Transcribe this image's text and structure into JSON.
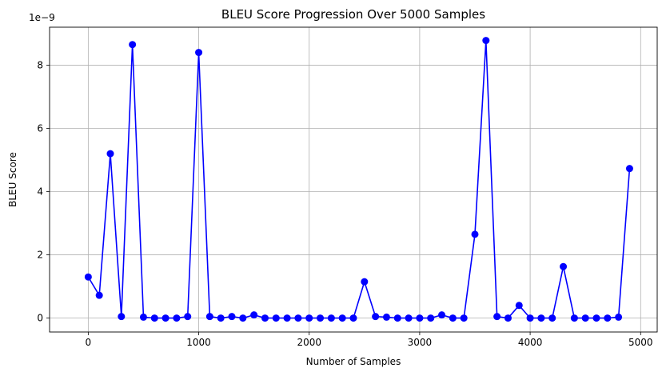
{
  "chart_data": {
    "type": "line",
    "title": "BLEU Score Progression Over 5000 Samples",
    "xlabel": "Number of Samples",
    "ylabel": "BLEU Score",
    "y_offset_label": "1e−9",
    "xlim": [
      -350,
      5150
    ],
    "ylim": [
      -0.44,
      9.2
    ],
    "x_ticks": [
      0,
      1000,
      2000,
      3000,
      4000,
      5000
    ],
    "y_ticks": [
      0,
      2,
      4,
      6,
      8
    ],
    "grid": true,
    "color": "#0000ff",
    "marker": "circle",
    "series": [
      {
        "x": [
          0,
          100,
          200,
          300,
          400,
          500,
          600,
          700,
          800,
          900,
          1000,
          1100,
          1200,
          1300,
          1400,
          1500,
          1600,
          1700,
          1800,
          1900,
          2000,
          2100,
          2200,
          2300,
          2400,
          2500,
          2600,
          2700,
          2800,
          2900,
          3000,
          3100,
          3200,
          3300,
          3400,
          3500,
          3600,
          3700,
          3800,
          3900,
          4000,
          4100,
          4200,
          4300,
          4400,
          4500,
          4600,
          4700,
          4800,
          4900
        ],
        "y": [
          1.3,
          0.72,
          5.2,
          0.05,
          8.65,
          0.03,
          0.0,
          0.0,
          0.0,
          0.05,
          8.4,
          0.05,
          0.0,
          0.05,
          0.0,
          0.1,
          0.0,
          0.0,
          0.0,
          0.0,
          0.0,
          0.0,
          0.0,
          0.0,
          0.0,
          1.15,
          0.05,
          0.03,
          0.0,
          0.0,
          0.0,
          0.0,
          0.1,
          0.0,
          0.0,
          2.65,
          8.78,
          0.05,
          0.0,
          0.4,
          0.0,
          0.0,
          0.0,
          1.63,
          0.0,
          0.0,
          0.0,
          0.0,
          0.03,
          4.73
        ]
      }
    ]
  }
}
